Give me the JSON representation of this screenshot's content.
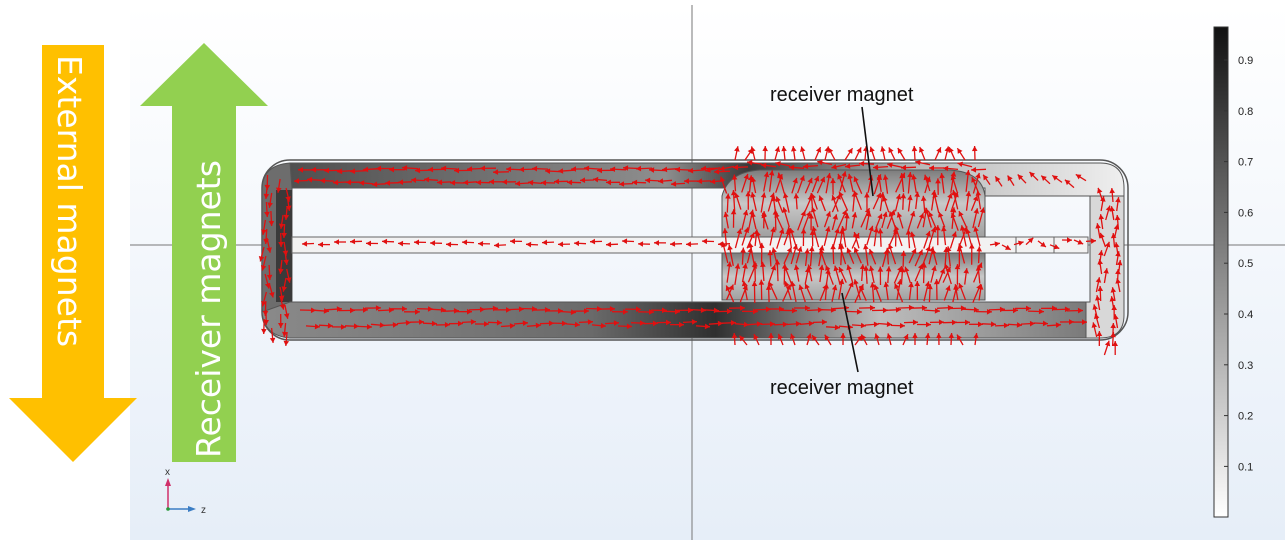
{
  "side_arrows": {
    "external": {
      "label": "External magnets",
      "color": "#FFC000",
      "direction": "down"
    },
    "receiver": {
      "label": "Receiver magnets",
      "color": "#92D050",
      "direction": "up"
    }
  },
  "annotations": {
    "top": "receiver magnet",
    "bottom": "receiver magnet"
  },
  "colorbar": {
    "ticks": [
      "0.9",
      "0.8",
      "0.7",
      "0.6",
      "0.5",
      "0.4",
      "0.3",
      "0.2",
      "0.1"
    ],
    "min_color": "#ffffff",
    "max_color": "#111111"
  },
  "axes_triad": {
    "vertical": "x",
    "horizontal": "z"
  },
  "colors": {
    "background_top": "#ffffff",
    "background_bottom": "#e6eef8",
    "arrow_color": "#e01010",
    "axis_x_color": "#d0306a",
    "axis_z_color": "#3b7dc4"
  },
  "icons": [
    "red-field-arrow-icon",
    "triad-icon"
  ]
}
